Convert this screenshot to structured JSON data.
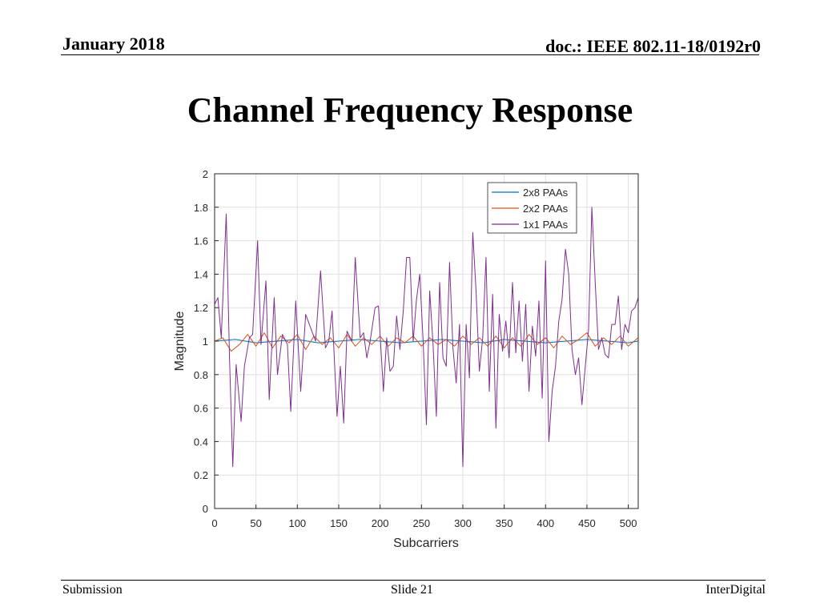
{
  "header": {
    "date": "January 2018",
    "doc": "doc.: IEEE 802.11-18/0192r0"
  },
  "slide": {
    "title": "Channel Frequency Response"
  },
  "footer": {
    "left": "Submission",
    "center": "Slide 21",
    "right": "InterDigital"
  },
  "chart_data": {
    "type": "line",
    "xlabel": "Subcarriers",
    "ylabel": "Magnitude",
    "xlim": [
      0,
      512
    ],
    "ylim": [
      0,
      2
    ],
    "xticks": [
      0,
      50,
      100,
      150,
      200,
      250,
      300,
      350,
      400,
      450,
      500
    ],
    "yticks": [
      0,
      0.2,
      0.4,
      0.6,
      0.8,
      1,
      1.2,
      1.4,
      1.6,
      1.8,
      2
    ],
    "ytick_labels": [
      "0",
      "0.2",
      "0.4",
      "0.6",
      "0.8",
      "1",
      "1.2",
      "1.4",
      "1.6",
      "1.8",
      "2"
    ],
    "grid": true,
    "legend": "top-right",
    "series": [
      {
        "name": "2x8 PAAs",
        "color": "#0072BD",
        "x": [
          0,
          25,
          50,
          75,
          100,
          125,
          150,
          175,
          200,
          225,
          250,
          275,
          300,
          325,
          350,
          375,
          400,
          425,
          450,
          475,
          500,
          512
        ],
        "y": [
          1.0,
          1.01,
          0.99,
          1.0,
          1.01,
          0.99,
          1.0,
          1.01,
          1.0,
          0.99,
          1.0,
          1.01,
          1.0,
          0.99,
          1.01,
          1.0,
          0.99,
          1.0,
          1.01,
          1.0,
          0.99,
          1.0
        ]
      },
      {
        "name": "2x2 PAAs",
        "color": "#D95319",
        "x": [
          0,
          10,
          20,
          30,
          40,
          50,
          60,
          70,
          80,
          90,
          100,
          110,
          120,
          130,
          140,
          150,
          160,
          170,
          180,
          190,
          200,
          210,
          220,
          230,
          240,
          250,
          260,
          270,
          280,
          290,
          300,
          310,
          320,
          330,
          340,
          350,
          360,
          370,
          380,
          390,
          400,
          410,
          420,
          430,
          440,
          450,
          460,
          470,
          480,
          490,
          500,
          512
        ],
        "y": [
          1.0,
          1.02,
          0.94,
          0.98,
          1.04,
          0.97,
          1.05,
          0.96,
          1.03,
          0.99,
          1.04,
          0.95,
          1.03,
          0.98,
          1.02,
          0.96,
          1.04,
          0.97,
          1.02,
          0.98,
          1.03,
          0.97,
          1.02,
          0.99,
          1.03,
          0.97,
          1.02,
          0.98,
          1.01,
          0.97,
          1.03,
          0.98,
          1.02,
          0.97,
          1.03,
          0.96,
          1.02,
          0.97,
          1.04,
          0.98,
          1.02,
          0.96,
          1.03,
          0.98,
          1.01,
          1.05,
          0.97,
          1.02,
          0.98,
          1.03,
          0.97,
          1.02
        ]
      },
      {
        "name": "1x1 PAAs",
        "color": "#7E2F8E",
        "x": [
          0,
          4,
          8,
          14,
          18,
          22,
          26,
          32,
          36,
          42,
          46,
          52,
          56,
          62,
          66,
          72,
          76,
          82,
          88,
          92,
          98,
          104,
          110,
          116,
          122,
          128,
          134,
          138,
          142,
          148,
          152,
          156,
          160,
          166,
          170,
          176,
          180,
          184,
          188,
          194,
          198,
          204,
          208,
          212,
          216,
          220,
          224,
          228,
          232,
          236,
          240,
          244,
          248,
          252,
          256,
          260,
          264,
          268,
          272,
          276,
          280,
          284,
          288,
          292,
          296,
          300,
          304,
          308,
          312,
          316,
          320,
          324,
          328,
          332,
          336,
          340,
          344,
          348,
          352,
          356,
          360,
          364,
          368,
          372,
          376,
          380,
          384,
          388,
          392,
          396,
          400,
          404,
          408,
          412,
          416,
          420,
          424,
          428,
          432,
          436,
          440,
          444,
          448,
          452,
          456,
          460,
          464,
          468,
          472,
          476,
          480,
          484,
          488,
          492,
          496,
          500,
          504,
          508,
          512
        ],
        "y": [
          1.22,
          1.26,
          1.02,
          1.76,
          0.9,
          0.25,
          0.86,
          0.52,
          0.85,
          1.02,
          1.04,
          1.6,
          0.98,
          1.36,
          0.65,
          1.26,
          0.8,
          1.04,
          0.98,
          0.58,
          1.24,
          0.7,
          1.16,
          1.08,
          1.0,
          1.42,
          0.96,
          1.0,
          1.18,
          0.55,
          0.85,
          0.51,
          1.06,
          1.0,
          1.5,
          1.02,
          1.05,
          0.9,
          1.0,
          1.2,
          1.21,
          0.7,
          1.02,
          0.82,
          0.85,
          1.15,
          0.95,
          1.18,
          1.5,
          1.5,
          1.0,
          1.25,
          1.4,
          1.0,
          0.5,
          1.3,
          0.98,
          0.55,
          1.35,
          0.9,
          0.85,
          1.47,
          0.96,
          0.75,
          1.1,
          0.25,
          1.1,
          0.78,
          1.65,
          1.3,
          0.82,
          1.02,
          1.5,
          0.7,
          1.28,
          0.48,
          1.16,
          0.94,
          1.12,
          0.9,
          1.35,
          0.93,
          1.24,
          0.88,
          1.22,
          0.7,
          1.09,
          0.91,
          1.24,
          0.66,
          1.48,
          0.4,
          0.7,
          0.85,
          1.12,
          1.25,
          1.55,
          1.4,
          0.95,
          0.8,
          0.9,
          0.62,
          0.85,
          1.07,
          1.8,
          1.35,
          0.95,
          1.02,
          0.92,
          0.9,
          1.1,
          1.1,
          1.27,
          0.95,
          1.1,
          1.05,
          1.18,
          1.2,
          1.26
        ]
      }
    ]
  }
}
